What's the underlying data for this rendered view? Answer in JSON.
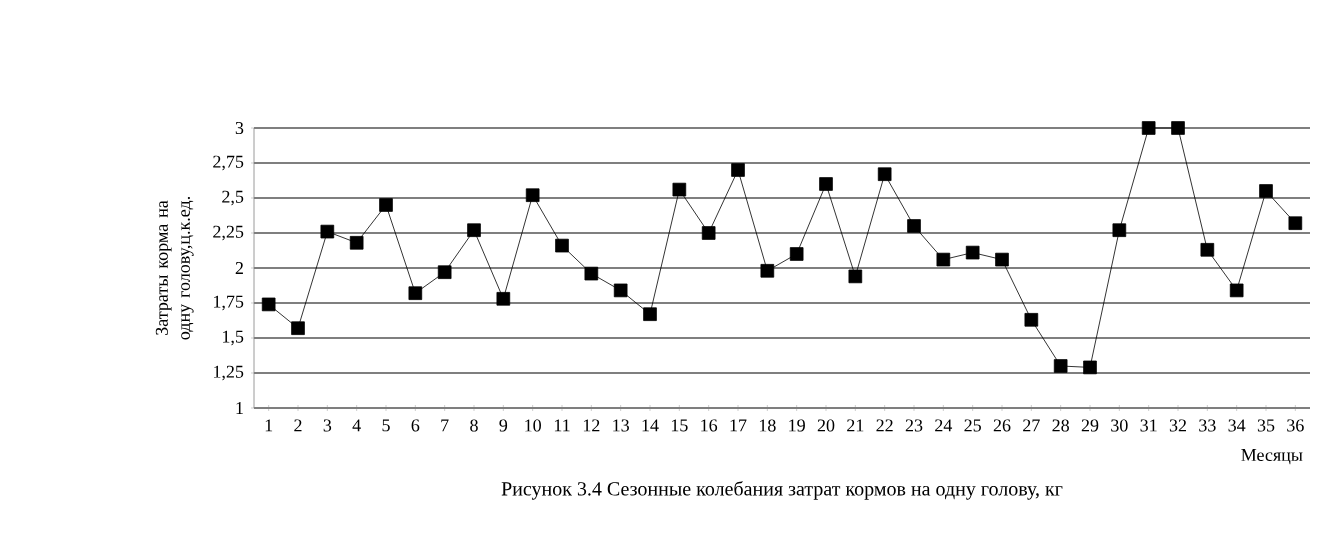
{
  "chart_data": {
    "type": "line",
    "categories": [
      "1",
      "2",
      "3",
      "4",
      "5",
      "6",
      "7",
      "8",
      "9",
      "10",
      "11",
      "12",
      "13",
      "14",
      "15",
      "16",
      "17",
      "18",
      "19",
      "20",
      "21",
      "22",
      "23",
      "24",
      "25",
      "26",
      "27",
      "28",
      "29",
      "30",
      "31",
      "32",
      "33",
      "34",
      "35",
      "36"
    ],
    "series": [
      {
        "color": "#000000",
        "values": [
          1.74,
          1.57,
          2.26,
          2.18,
          2.45,
          1.82,
          1.97,
          2.27,
          1.78,
          2.52,
          2.16,
          1.96,
          1.84,
          1.67,
          2.56,
          2.25,
          2.7,
          1.98,
          2.1,
          2.6,
          1.94,
          2.67,
          2.3,
          2.06,
          2.11,
          2.06,
          1.63,
          1.3,
          1.29,
          2.27,
          3,
          3,
          2.13,
          1.84,
          2.55,
          2.32
        ]
      }
    ],
    "ylim": [
      1,
      3
    ],
    "yticks": [
      1,
      {
        "value": 1.25,
        "label": "1,25"
      },
      {
        "value": 1.5,
        "label": "1,5"
      },
      {
        "value": 1.75,
        "label": "1,75"
      },
      2,
      {
        "value": 2.25,
        "label": "2,25"
      },
      {
        "value": 2.5,
        "label": "2,5"
      },
      {
        "value": 2.75,
        "label": "2,75"
      },
      3
    ],
    "ylabel": "Затраты корма на одну голову,ц.к.ед.",
    "xlabel": "Месяцы",
    "annotations": [
      "Рисунок 3.4 Сезонные колебания затрат кормов на одну голову, кг"
    ],
    "grid": "y",
    "marker": "square",
    "line_style": "solid",
    "legend": false
  }
}
